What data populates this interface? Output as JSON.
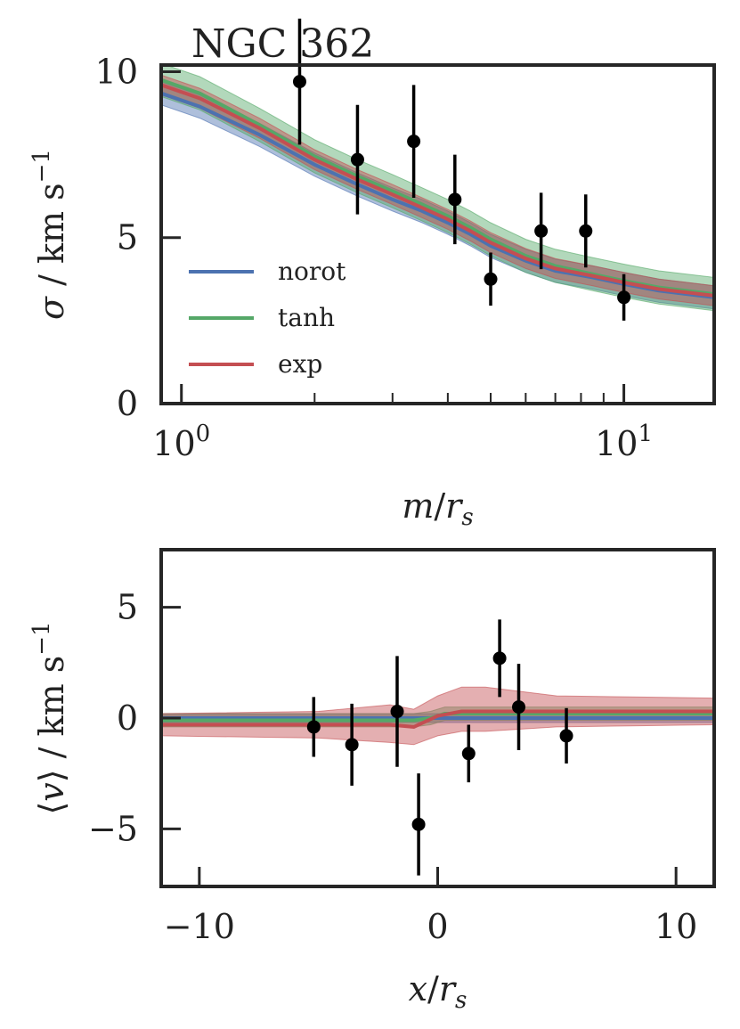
{
  "chart_data": [
    {
      "type": "line",
      "title": "NGC 362",
      "xlabel": "m/r_s",
      "ylabel": "σ / km s⁻¹",
      "xscale": "log",
      "xlim": [
        0.9,
        16
      ],
      "ylim": [
        0,
        10.2
      ],
      "xticks": [
        {
          "value": 1,
          "label": "10",
          "exp": "0"
        },
        {
          "value": 10,
          "label": "10",
          "exp": "1"
        }
      ],
      "yticks": [
        {
          "value": 0,
          "label": "0"
        },
        {
          "value": 5,
          "label": "5"
        },
        {
          "value": 10,
          "label": "10"
        }
      ],
      "legend_position": "lower-left",
      "series": [
        {
          "name": "norot",
          "color": "#4c72b0",
          "x": [
            0.9,
            1.1,
            1.5,
            2.0,
            2.5,
            3.0,
            3.5,
            4.0,
            4.5,
            5.0,
            6.0,
            7.0,
            8.5,
            10,
            12,
            16
          ],
          "values": [
            9.35,
            8.95,
            8.1,
            7.2,
            6.6,
            6.15,
            5.8,
            5.45,
            5.1,
            4.75,
            4.3,
            4.0,
            3.8,
            3.6,
            3.4,
            3.2
          ],
          "band": 0.35
        },
        {
          "name": "tanh",
          "color": "#55a868",
          "x": [
            0.9,
            1.1,
            1.5,
            2.0,
            2.5,
            3.0,
            3.5,
            4.0,
            4.5,
            5.0,
            6.0,
            7.0,
            8.5,
            10,
            12,
            16
          ],
          "values": [
            9.75,
            9.35,
            8.4,
            7.45,
            6.85,
            6.4,
            6.0,
            5.65,
            5.3,
            4.95,
            4.45,
            4.15,
            3.9,
            3.7,
            3.5,
            3.3
          ],
          "band": 0.5
        },
        {
          "name": "exp",
          "color": "#c44e52",
          "x": [
            0.9,
            1.1,
            1.5,
            2.0,
            2.5,
            3.0,
            3.5,
            4.0,
            4.5,
            5.0,
            6.0,
            7.0,
            8.5,
            10,
            12,
            16
          ],
          "values": [
            9.6,
            9.2,
            8.3,
            7.35,
            6.75,
            6.3,
            5.9,
            5.55,
            5.2,
            4.85,
            4.37,
            4.07,
            3.85,
            3.65,
            3.45,
            3.25
          ],
          "band": 0.3
        }
      ],
      "points": [
        {
          "x": 1.85,
          "y": 9.7,
          "err": 1.9
        },
        {
          "x": 2.5,
          "y": 7.35,
          "err": 1.65
        },
        {
          "x": 3.35,
          "y": 7.9,
          "err": 1.7
        },
        {
          "x": 4.15,
          "y": 6.15,
          "err": 1.35
        },
        {
          "x": 5.0,
          "y": 3.75,
          "err": 0.8
        },
        {
          "x": 6.5,
          "y": 5.2,
          "err": 1.15
        },
        {
          "x": 8.2,
          "y": 5.2,
          "err": 1.1
        },
        {
          "x": 10.0,
          "y": 3.2,
          "err": 0.7
        }
      ]
    },
    {
      "type": "line",
      "title": "",
      "xlabel": "x/r_s",
      "ylabel": "⟨v⟩ / km s⁻¹",
      "xlim": [
        -11.6,
        11.6
      ],
      "ylim": [
        -7.6,
        7.6
      ],
      "xticks": [
        {
          "value": -10,
          "label": "−10"
        },
        {
          "value": 0,
          "label": "0"
        },
        {
          "value": 10,
          "label": "10"
        }
      ],
      "yticks": [
        {
          "value": -5,
          "label": "−5"
        },
        {
          "value": 0,
          "label": "0"
        },
        {
          "value": 5,
          "label": "5"
        }
      ],
      "series": [
        {
          "name": "norot",
          "color": "#4c72b0",
          "x": [
            -11.6,
            -3,
            -1,
            0,
            1,
            3,
            11.6
          ],
          "values": [
            0.0,
            0.0,
            0.0,
            0.0,
            0.0,
            0.0,
            0.0
          ],
          "band_low": [
            -0.2,
            -0.2,
            -0.2,
            -0.2,
            -0.2,
            -0.2,
            -0.2
          ],
          "band_high": [
            0.2,
            0.2,
            0.2,
            0.2,
            0.2,
            0.2,
            0.2
          ]
        },
        {
          "name": "tanh",
          "color": "#55a868",
          "x": [
            -11.6,
            -3,
            -1,
            -0.3,
            0.3,
            1,
            3,
            11.6
          ],
          "values": [
            -0.1,
            -0.1,
            -0.1,
            0.0,
            0.2,
            0.2,
            0.2,
            0.2
          ],
          "band_low": [
            -0.4,
            -0.4,
            -0.4,
            -0.3,
            -0.1,
            -0.1,
            -0.1,
            -0.1
          ],
          "band_high": [
            0.2,
            0.2,
            0.2,
            0.3,
            0.5,
            0.5,
            0.5,
            0.5
          ]
        },
        {
          "name": "exp",
          "color": "#c44e52",
          "x": [
            -11.6,
            -5,
            -2,
            -1,
            0,
            1,
            2,
            5,
            11.6
          ],
          "values": [
            -0.3,
            -0.3,
            -0.3,
            -0.4,
            0.1,
            0.3,
            0.3,
            0.3,
            0.3
          ],
          "band_low": [
            -0.8,
            -0.9,
            -1.1,
            -1.2,
            -0.8,
            -0.6,
            -0.6,
            -0.4,
            -0.3
          ],
          "band_high": [
            0.2,
            0.3,
            0.6,
            0.4,
            1.0,
            1.4,
            1.4,
            1.0,
            0.9
          ]
        }
      ],
      "points": [
        {
          "x": -5.2,
          "y": -0.4,
          "err": 1.35
        },
        {
          "x": -3.6,
          "y": -1.2,
          "err": 1.85
        },
        {
          "x": -1.7,
          "y": 0.3,
          "err": 2.5
        },
        {
          "x": -0.8,
          "y": -4.8,
          "err": 2.3
        },
        {
          "x": 1.3,
          "y": -1.6,
          "err": 1.3
        },
        {
          "x": 2.6,
          "y": 2.7,
          "err": 1.75
        },
        {
          "x": 3.4,
          "y": 0.5,
          "err": 1.95
        },
        {
          "x": 5.4,
          "y": -0.8,
          "err": 1.25
        }
      ]
    }
  ]
}
